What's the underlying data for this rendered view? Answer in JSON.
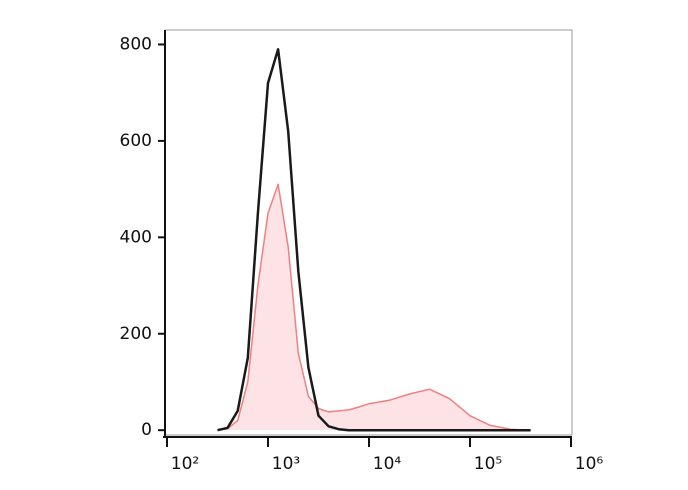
{
  "chart_data": {
    "type": "histogram-line",
    "x": [
      316,
      398,
      501,
      631,
      794,
      1000,
      1259,
      1585,
      1995,
      2512,
      3162,
      3981,
      5012,
      6310,
      7943,
      10000,
      15849,
      25119,
      39811,
      63096,
      100000,
      158489,
      251189,
      398107
    ],
    "series": [
      {
        "color": "#f08080",
        "fill": "#fde3e6",
        "values": [
          0,
          3,
          20,
          100,
          300,
          450,
          510,
          380,
          160,
          70,
          45,
          38,
          40,
          42,
          48,
          55,
          62,
          75,
          85,
          65,
          30,
          10,
          2,
          0
        ]
      },
      {
        "color": "#1a1a1a",
        "values": [
          0,
          5,
          40,
          150,
          450,
          720,
          790,
          620,
          330,
          130,
          30,
          8,
          2,
          0,
          0,
          0,
          0,
          0,
          0,
          0,
          0,
          0,
          0,
          0
        ]
      }
    ],
    "xscale": "log",
    "xlim": [
      100,
      1000000
    ],
    "xticks": [
      {
        "value": 100,
        "label": "10²"
      },
      {
        "value": 1000,
        "label": "10³"
      },
      {
        "value": 10000,
        "label": "10⁴"
      },
      {
        "value": 100000,
        "label": "10⁵"
      },
      {
        "value": 1000000,
        "label": "10⁶"
      }
    ],
    "ylim": [
      -10,
      830
    ],
    "yticks": [
      0,
      200,
      400,
      600,
      800
    ]
  }
}
